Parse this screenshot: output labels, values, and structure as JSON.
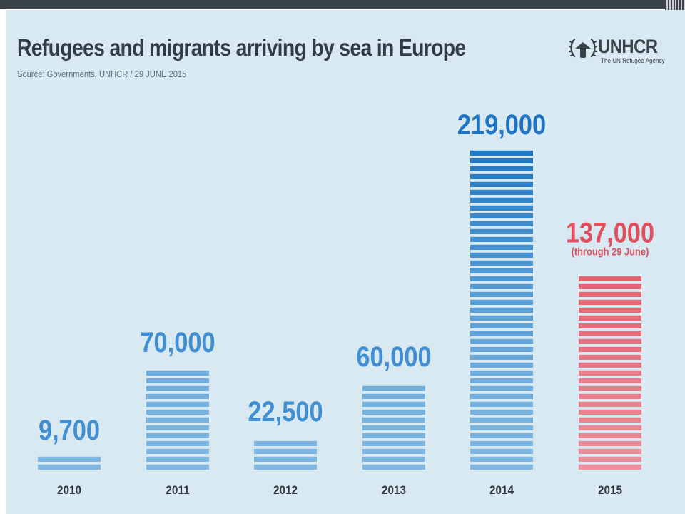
{
  "chart_data": {
    "type": "bar",
    "title": "Refugees and migrants arriving by sea in Europe",
    "subtitle": "Source: Governments, UNHCR / 29 JUNE 2015",
    "categories": [
      "2010",
      "2011",
      "2012",
      "2013",
      "2014",
      "2015"
    ],
    "values": [
      9700,
      70000,
      22500,
      60000,
      219000,
      137000
    ],
    "value_labels": [
      "9,700",
      "70,000",
      "22,500",
      "60,000",
      "219,000",
      "137,000"
    ],
    "annotations": [
      {
        "category": "2015",
        "text": "(through 29 June)"
      }
    ],
    "ylim": [
      0,
      219000
    ],
    "grid": false,
    "legend": "none"
  },
  "logo": {
    "name": "UNHCR",
    "tagline": "The UN Refugee Agency"
  },
  "colors": {
    "panel_background": "#d8e9f2",
    "bar_light_blue": "#7fb7e2",
    "bar_dark_blue": "#1f78c4",
    "label_blue": "#3f8fd2",
    "label_dark_blue": "#1e74c2",
    "highlight_red": "#e0505f",
    "bar_light_red": "#ef9aa7",
    "title_text": "#333b44"
  }
}
